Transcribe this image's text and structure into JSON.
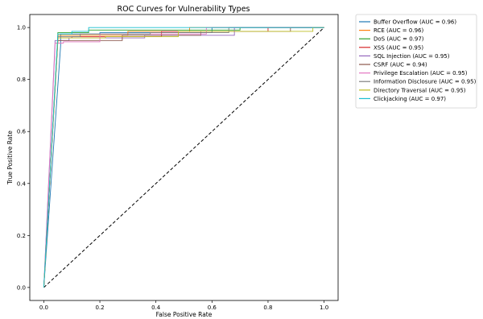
{
  "chart_data": {
    "type": "line",
    "title": "ROC Curves for Vulnerability Types",
    "xlabel": "False Positive Rate",
    "ylabel": "True Positive Rate",
    "xlim": [
      -0.05,
      1.05
    ],
    "ylim": [
      -0.05,
      1.05
    ],
    "xticks": [
      "0.0",
      "0.2",
      "0.4",
      "0.6",
      "0.8",
      "1.0"
    ],
    "yticks": [
      "0.0",
      "0.2",
      "0.4",
      "0.6",
      "0.8",
      "1.0"
    ],
    "grid": false,
    "legend_position": "outside-right",
    "baseline": {
      "x": [
        0,
        1
      ],
      "y": [
        0,
        1
      ],
      "style": "dashed",
      "color": "#000000"
    },
    "series": [
      {
        "name": "Buffer Overflow (AUC = 0.96)",
        "color": "#1f77b4",
        "x": [
          0,
          0.06,
          0.06,
          0.2,
          0.2,
          0.6,
          0.6,
          1.0
        ],
        "y": [
          0,
          0.93,
          0.975,
          0.975,
          0.98,
          0.98,
          1.0,
          1.0
        ]
      },
      {
        "name": "RCE (AUC = 0.96)",
        "color": "#ff7f0e",
        "x": [
          0,
          0.05,
          0.05,
          0.3,
          0.3,
          0.52,
          0.52,
          1.0
        ],
        "y": [
          0,
          0.96,
          0.97,
          0.97,
          0.985,
          0.985,
          1.0,
          1.0
        ]
      },
      {
        "name": "DoS (AUC = 0.97)",
        "color": "#2ca02c",
        "x": [
          0,
          0.05,
          0.05,
          0.16,
          0.16,
          0.7,
          0.7,
          1.0
        ],
        "y": [
          0,
          0.97,
          0.98,
          0.98,
          0.99,
          0.99,
          1.0,
          1.0
        ]
      },
      {
        "name": "XSS (AUC = 0.95)",
        "color": "#d62728",
        "x": [
          0,
          0.05,
          0.05,
          0.1,
          0.1,
          0.42,
          0.42,
          0.8,
          0.8,
          1.0
        ],
        "y": [
          0,
          0.95,
          0.96,
          0.96,
          0.965,
          0.965,
          0.985,
          0.985,
          1.0,
          1.0
        ]
      },
      {
        "name": "SQL Injection (AUC = 0.95)",
        "color": "#9467bd",
        "x": [
          0,
          0.04,
          0.04,
          0.09,
          0.09,
          0.36,
          0.36,
          0.68,
          0.68,
          1.0
        ],
        "y": [
          0,
          0.94,
          0.95,
          0.95,
          0.96,
          0.96,
          0.97,
          0.97,
          1.0,
          1.0
        ]
      },
      {
        "name": "CSRF (AUC = 0.94)",
        "color": "#8c564b",
        "x": [
          0,
          0.05,
          0.05,
          0.28,
          0.28,
          0.56,
          0.56,
          0.88,
          0.88,
          1.0
        ],
        "y": [
          0,
          0.945,
          0.95,
          0.95,
          0.97,
          0.97,
          0.985,
          0.985,
          1.0,
          1.0
        ]
      },
      {
        "name": "Privilege Escalation (AUC = 0.95)",
        "color": "#e377c2",
        "x": [
          0,
          0.04,
          0.04,
          0.07,
          0.07,
          0.2,
          0.2,
          0.58,
          0.58,
          1.0
        ],
        "y": [
          0,
          0.92,
          0.94,
          0.94,
          0.945,
          0.945,
          0.975,
          0.975,
          1.0,
          1.0
        ]
      },
      {
        "name": "Information Disclosure (AUC = 0.95)",
        "color": "#7f7f7f",
        "x": [
          0,
          0.05,
          0.05,
          0.13,
          0.13,
          0.38,
          0.38,
          0.66,
          0.66,
          1.0
        ],
        "y": [
          0,
          0.96,
          0.965,
          0.965,
          0.975,
          0.975,
          0.98,
          0.98,
          1.0,
          1.0
        ]
      },
      {
        "name": "Directory Traversal (AUC = 0.95)",
        "color": "#bcbd22",
        "x": [
          0,
          0.05,
          0.05,
          0.22,
          0.22,
          0.48,
          0.48,
          0.96,
          0.96,
          1.0
        ],
        "y": [
          0,
          0.95,
          0.96,
          0.96,
          0.965,
          0.965,
          0.985,
          0.985,
          1.0,
          1.0
        ]
      },
      {
        "name": "Clickjacking (AUC = 0.97)",
        "color": "#17becf",
        "x": [
          0,
          0.05,
          0.05,
          0.1,
          0.1,
          0.16,
          0.16,
          1.0
        ],
        "y": [
          0,
          0.97,
          0.975,
          0.975,
          0.985,
          0.985,
          1.0,
          1.0
        ]
      }
    ]
  }
}
